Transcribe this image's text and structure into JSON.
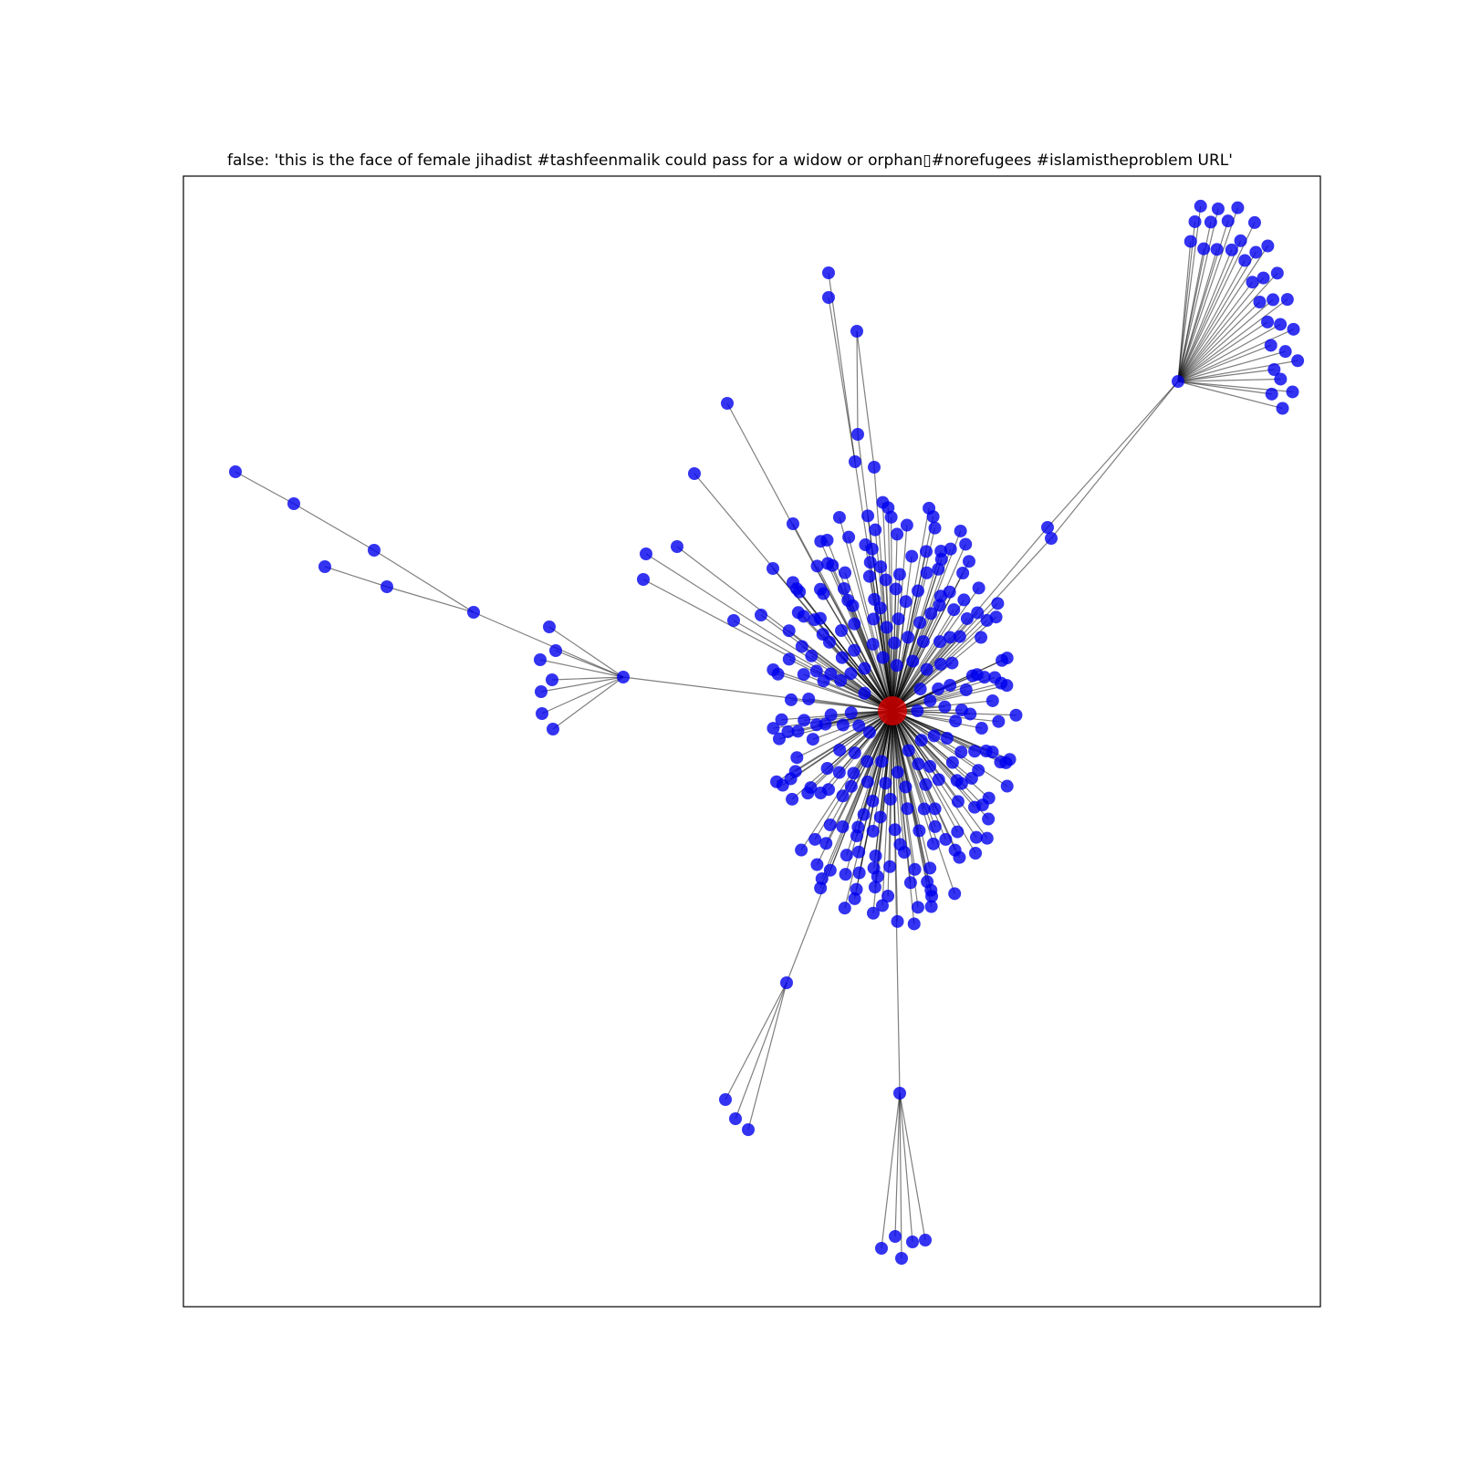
{
  "title": "false: 'this is the face of female jihadist #tashfeenmalik could pass for a widow or orphan▯#norefugees #islamistheproblem URL'",
  "colors": {
    "root_node": "#dd0000",
    "leaf_node": "#0000ee",
    "edge": "#000000",
    "frame": "#000000"
  },
  "graph": {
    "type": "propagation-tree",
    "root": "source",
    "main_hub_leaf_count": 248,
    "branches": [
      {
        "id": "west-hub",
        "leaves": 7,
        "chain": [
          "west-mid",
          "west-far"
        ],
        "chain_children": 2
      },
      {
        "id": "northeast-hub",
        "leaves": 32,
        "relay_nodes": 2
      },
      {
        "id": "south-hub",
        "leaves": 5
      },
      {
        "id": "southwest-hub",
        "leaves": 3
      },
      {
        "id": "north-chain",
        "leaves": 3
      },
      {
        "id": "northwest-spokes",
        "leaves": 6
      }
    ]
  }
}
